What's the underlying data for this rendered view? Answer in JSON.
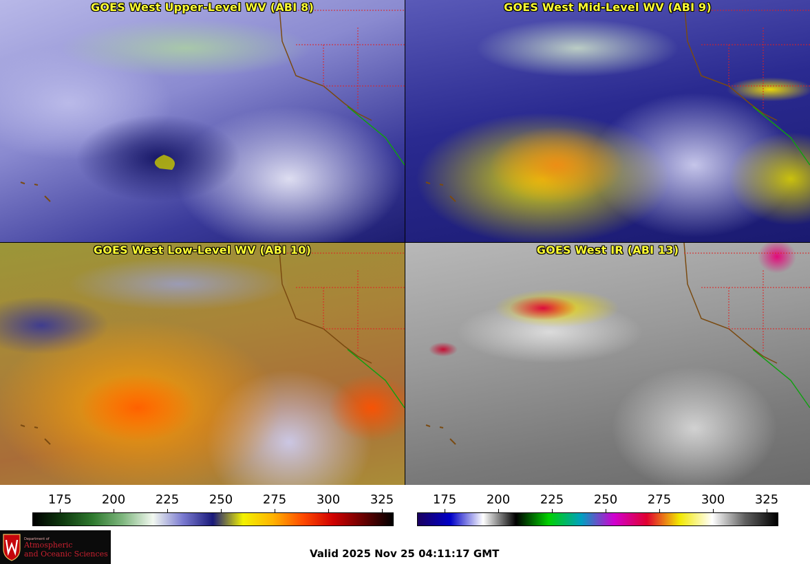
{
  "panels": {
    "upper": {
      "title": "GOES West Upper-Level WV (ABI 8)"
    },
    "mid": {
      "title": "GOES West Mid-Level WV (ABI 9)"
    },
    "low": {
      "title": "GOES West Low-Level WV (ABI 10)"
    },
    "ir": {
      "title": "GOES West IR (ABI 13)"
    }
  },
  "colorbars": {
    "wv": {
      "ticks": [
        "175",
        "200",
        "225",
        "250",
        "275",
        "300",
        "325"
      ],
      "colors": [
        "#000000",
        "#0f3a0f",
        "#2f7a2f",
        "#7fb77f",
        "#f2f8f0",
        "#7a7ad0",
        "#1a1a7a",
        "#f2f200",
        "#ffb300",
        "#ff4a00",
        "#d00000",
        "#6a0000",
        "#000000"
      ]
    },
    "ir": {
      "ticks": [
        "175",
        "200",
        "225",
        "250",
        "275",
        "300",
        "325"
      ],
      "colors": [
        "#1a0060",
        "#0000c8",
        "#ffffff",
        "#000000",
        "#00d000",
        "#00a0c0",
        "#d000d0",
        "#e00030",
        "#f2e800",
        "#ffffff",
        "#606060",
        "#000000"
      ]
    }
  },
  "logo": {
    "dept": "Department of",
    "name_line1": "Atmospheric",
    "name_line2": "and Oceanic Sciences"
  },
  "valid_time": "Valid 2025 Nov 25 04:11:17 GMT"
}
